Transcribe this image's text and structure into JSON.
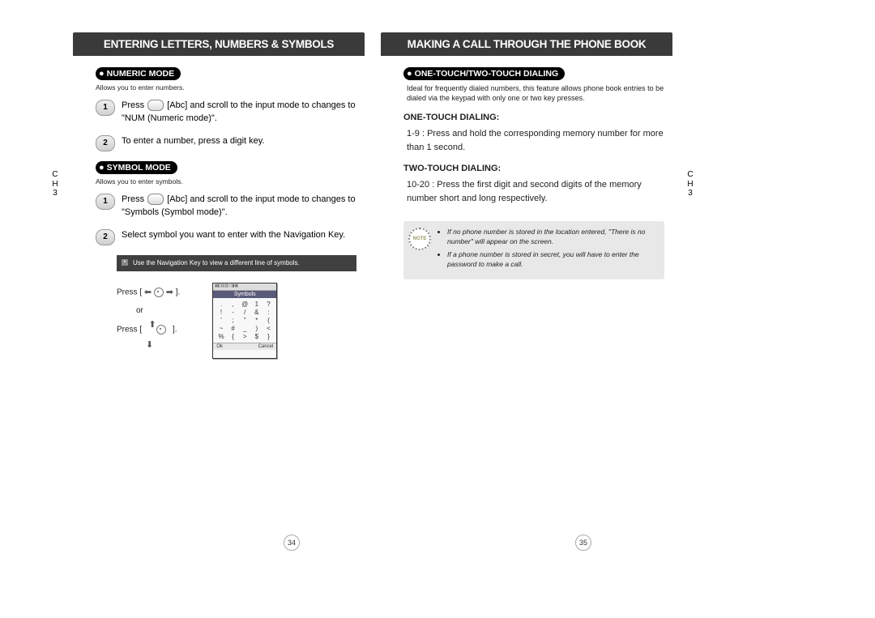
{
  "leftPage": {
    "header": "ENTERING LETTERS, NUMBERS & SYMBOLS",
    "chapterLabel": "C\nH\n3",
    "numericMode": {
      "pill": "NUMERIC MODE",
      "sub": "Allows you to enter numbers.",
      "step1_a": "Press ",
      "step1_b": " [Abc] and scroll to the input mode to changes to \"NUM (Numeric mode)\".",
      "step2": "To enter a number, press a digit key."
    },
    "symbolMode": {
      "pill": "SYMBOL MODE",
      "sub": "Allows you to enter symbols.",
      "step1_a": "Press ",
      "step1_b": " [Abc] and scroll to the input mode to changes to \"Symbols (Symbol mode)\".",
      "step2": "Select symbol you want to enter with the Navigation Key.",
      "noteBox": "Use the Navigation Key to view a different line of symbols.",
      "pressLabel": "Press [",
      "orLabel": "or",
      "closeBracket": "].",
      "phoneTitle": "Symbols",
      "phoneSoftLeft": "Ok",
      "phoneSoftRight": "Cancel",
      "symbolGrid": [
        ".",
        ",",
        "@",
        "1",
        "?",
        "!",
        "-",
        "/",
        "&",
        ":",
        "'",
        ";",
        "\"",
        "*",
        "(",
        "~",
        "#",
        "_",
        ")",
        "<",
        "%",
        "{",
        ">",
        "$",
        "}"
      ]
    },
    "pageNum": "34"
  },
  "rightPage": {
    "header": "MAKING A CALL THROUGH THE PHONE BOOK",
    "chapterLabel": "C\nH\n3",
    "section": {
      "pill": "ONE-TOUCH/TWO-TOUCH DIALING",
      "intro": "Ideal for frequently dialed numbers, this feature allows phone book entries to be dialed via the keypad with only one or two key presses.",
      "oneTouchHeading": "ONE-TOUCH DIALING:",
      "oneTouchText": "1-9 : Press and hold the corresponding memory number for more than 1 second.",
      "twoTouchHeading": "TWO-TOUCH DIALING:",
      "twoTouchText": "10-20 : Press the first digit and second digits of the memory number short and long respectively.",
      "noteSeal": "NOTE",
      "noteBullets": [
        "If no phone number is stored in the location entered, \"There is no number\" will appear on the screen.",
        "If a phone number is stored in secret, you will have to enter the password to make a call."
      ]
    },
    "pageNum": "35"
  }
}
